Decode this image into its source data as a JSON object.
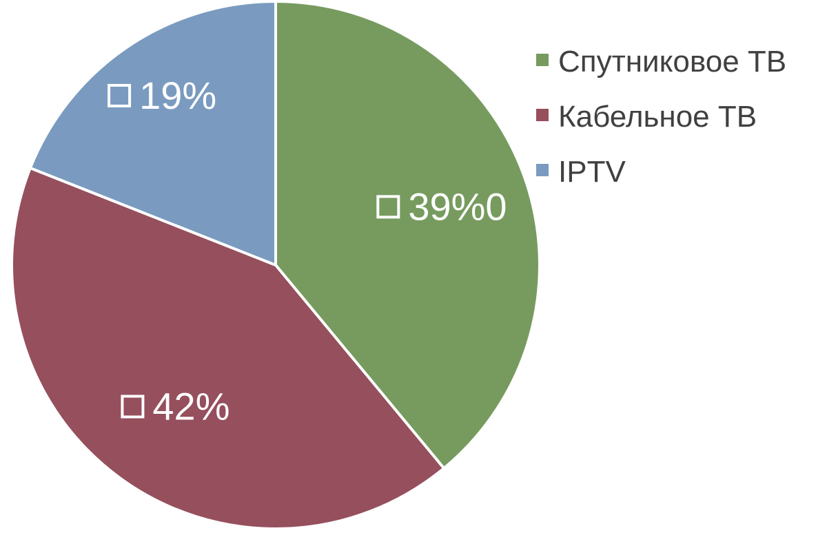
{
  "chart_data": {
    "type": "pie",
    "categories": [
      "Спутниковое ТВ",
      "Кабельное ТВ",
      "IPTV"
    ],
    "values": [
      39,
      42,
      19
    ],
    "data_labels": [
      "39%0",
      "42%",
      "19%"
    ],
    "colors": [
      "#779b5f",
      "#954f5d",
      "#7a9bbf"
    ],
    "start_angle": "12 o'clock",
    "direction": "clockwise",
    "legend_position": "right"
  }
}
